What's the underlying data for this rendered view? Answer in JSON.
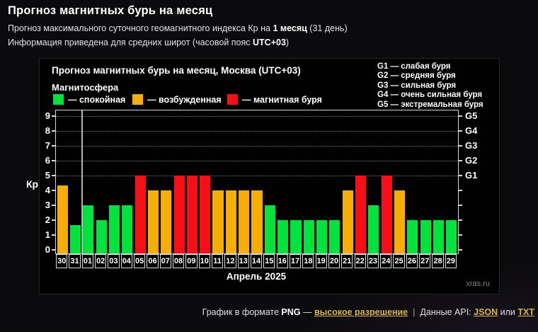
{
  "header": {
    "title": "Прогноз магнитных бурь на месяц",
    "line1_pre": "Прогноз максимального суточного геомагнитного индекса Кр на ",
    "line1_bold": "1 месяц",
    "line1_post": " (31 день)",
    "line2_pre": "Информация приведена для средних широт (часовой пояс ",
    "line2_bold": "UTC+03",
    "line2_post": ")"
  },
  "chart": {
    "title": "Прогноз магнитных бурь на месяц, Москва (UTC+03)",
    "legend_title": "Магнитосфера",
    "legend": [
      {
        "label": "— спокойная",
        "color": "#00e23c"
      },
      {
        "label": "— возбужденная",
        "color": "#f6ae00"
      },
      {
        "label": "— магнитная буря",
        "color": "#f80f16"
      }
    ],
    "g_scale": [
      "G1 — слабая буря",
      "G2 — средняя буря",
      "G3 — сильная буря",
      "G4 — очень сильная буря",
      "G5 — экстремальная буря"
    ],
    "watermark": "xras.ru"
  },
  "chart_data": {
    "type": "bar",
    "title": "Прогноз магнитных бурь на месяц, Москва (UTC+03)",
    "xlabel": "Апрель 2025",
    "ylabel": "Кр",
    "ylim": [
      0,
      9.6
    ],
    "yticks": [
      0,
      1,
      2,
      3,
      4,
      5,
      6,
      7,
      8,
      9
    ],
    "gridlines_at": [
      5,
      6,
      7,
      8,
      9
    ],
    "grid_style": "dotted",
    "legend_position": "top-left",
    "right_axis_labels": [
      {
        "label": "G1",
        "value": 5
      },
      {
        "label": "G2",
        "value": 6
      },
      {
        "label": "G3",
        "value": 7
      },
      {
        "label": "G4",
        "value": 8
      },
      {
        "label": "G5",
        "value": 9
      }
    ],
    "month_separator_after_index": 1,
    "categories": [
      "30",
      "31",
      "01",
      "02",
      "03",
      "04",
      "05",
      "06",
      "07",
      "08",
      "09",
      "10",
      "11",
      "12",
      "13",
      "14",
      "15",
      "16",
      "17",
      "18",
      "19",
      "20",
      "21",
      "22",
      "23",
      "24",
      "25",
      "26",
      "27",
      "28",
      "29"
    ],
    "values": [
      4.33,
      1.67,
      3,
      2,
      3,
      3,
      5,
      4,
      4,
      5,
      5,
      5,
      4,
      4,
      4,
      4,
      3,
      2,
      2,
      2,
      2,
      2,
      4,
      5,
      3,
      5,
      4,
      2,
      2,
      2,
      2
    ],
    "statuses": [
      "excited",
      "quiet",
      "quiet",
      "quiet",
      "quiet",
      "quiet",
      "storm",
      "excited",
      "excited",
      "storm",
      "storm",
      "storm",
      "excited",
      "excited",
      "excited",
      "excited",
      "quiet",
      "quiet",
      "quiet",
      "quiet",
      "quiet",
      "quiet",
      "excited",
      "storm",
      "quiet",
      "storm",
      "excited",
      "quiet",
      "quiet",
      "quiet",
      "quiet"
    ],
    "status_colors": {
      "quiet": "#00e23c",
      "excited": "#f6ae00",
      "storm": "#f80f16"
    }
  },
  "footer": {
    "part1_pre": "График в формате ",
    "part1_bold": "PNG",
    "dash": " — ",
    "link_hires": "высокое разрешение",
    "separator": "|",
    "part2_pre": "Данные API: ",
    "link_json": "JSON",
    "part2_mid": " или ",
    "link_txt": "TXT"
  }
}
